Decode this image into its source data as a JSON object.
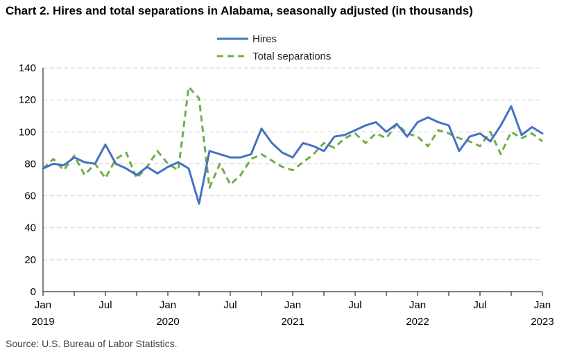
{
  "header": {
    "title": "Chart 2. Hires and total separations in Alabama, seasonally adjusted (in thousands)"
  },
  "footer": {
    "source": "Source: U.S. Bureau of Labor Statistics."
  },
  "chart_data": {
    "type": "line",
    "title": "Chart 2. Hires and total separations in Alabama, seasonally adjusted (in thousands)",
    "xlabel": "",
    "ylabel": "",
    "ylim": [
      0,
      140
    ],
    "yticks": [
      0,
      20,
      40,
      60,
      80,
      100,
      120,
      140
    ],
    "grid": "horizontal dashed",
    "legend_position": "top-center",
    "x_tick_labels": [
      {
        "index": 0,
        "month": "Jan",
        "year": "2019"
      },
      {
        "index": 6,
        "month": "Jul",
        "year": ""
      },
      {
        "index": 12,
        "month": "Jan",
        "year": "2020"
      },
      {
        "index": 18,
        "month": "Jul",
        "year": ""
      },
      {
        "index": 24,
        "month": "Jan",
        "year": "2021"
      },
      {
        "index": 30,
        "month": "Jul",
        "year": ""
      },
      {
        "index": 36,
        "month": "Jan",
        "year": "2022"
      },
      {
        "index": 42,
        "month": "Jul",
        "year": ""
      },
      {
        "index": 48,
        "month": "Jan",
        "year": "2023"
      }
    ],
    "series": [
      {
        "name": "Hires",
        "color": "#4472C4",
        "dash": "solid",
        "values": [
          77,
          80,
          79,
          84,
          81,
          80,
          92,
          80,
          77,
          73,
          78,
          74,
          78,
          81,
          77,
          55,
          88,
          86,
          84,
          84,
          86,
          102,
          93,
          87,
          84,
          93,
          91,
          88,
          97,
          98,
          101,
          104,
          106,
          100,
          105,
          97,
          106,
          109,
          106,
          104,
          88,
          97,
          99,
          94,
          104,
          116,
          98,
          103,
          99
        ]
      },
      {
        "name": "Total separations",
        "color": "#70AD47",
        "dash": "dashed",
        "values": [
          77,
          83,
          76,
          85,
          73,
          80,
          71,
          83,
          87,
          71,
          78,
          88,
          80,
          76,
          128,
          121,
          65,
          80,
          67,
          73,
          83,
          86,
          82,
          78,
          76,
          81,
          86,
          93,
          90,
          96,
          99,
          93,
          99,
          96,
          105,
          99,
          97,
          91,
          101,
          99,
          96,
          94,
          91,
          100,
          86,
          100,
          96,
          99,
          94
        ]
      }
    ]
  }
}
